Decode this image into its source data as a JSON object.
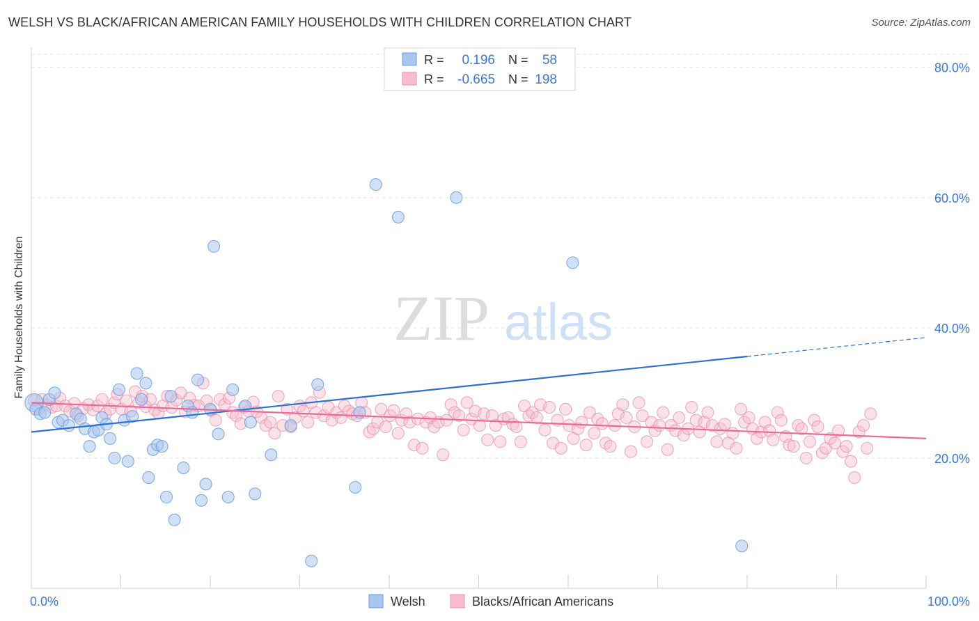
{
  "title": "WELSH VS BLACK/AFRICAN AMERICAN FAMILY HOUSEHOLDS WITH CHILDREN CORRELATION CHART",
  "source": "Source: ZipAtlas.com",
  "watermark": {
    "zip": "ZIP",
    "atlas": "atlas"
  },
  "legend_top": {
    "rows": [
      {
        "r_label": "R =",
        "r_value": "0.196",
        "n_label": "N =",
        "n_value": "58",
        "color": "#6a9be0"
      },
      {
        "r_label": "R =",
        "r_value": "-0.665",
        "n_label": "N =",
        "n_value": "198",
        "color": "#f08aaa"
      }
    ]
  },
  "legend_bottom": [
    "Welsh",
    "Blacks/African Americans"
  ],
  "colors": {
    "blue_fill": "#a9c6f0",
    "blue_stroke": "#6a9be0",
    "blue_line": "#2e6fd1",
    "pink_fill": "#f7bccd",
    "pink_stroke": "#ea8fab",
    "pink_line": "#e86b94",
    "tick_text": "#3a78d4",
    "grid": "#e3e3e3"
  },
  "chart_data": {
    "type": "scatter",
    "title": "WELSH VS BLACK/AFRICAN AMERICAN FAMILY HOUSEHOLDS WITH CHILDREN CORRELATION CHART",
    "xlabel": "",
    "ylabel": "Family Households with Children",
    "xlim": [
      0,
      100
    ],
    "ylim": [
      0,
      82
    ],
    "x_tick_labels": [
      "0.0%",
      "100.0%"
    ],
    "y_tick_labels": [
      "20.0%",
      "40.0%",
      "60.0%",
      "80.0%"
    ],
    "y_ticks": [
      20,
      40,
      60,
      80
    ],
    "grid": true,
    "legend_placement": "top-center",
    "series": [
      {
        "name": "Welsh",
        "points": [
          [
            0.3,
            28.5
          ],
          [
            0.5,
            27.5
          ],
          [
            1.0,
            26.8
          ],
          [
            1.5,
            27.0
          ],
          [
            2.0,
            29.0
          ],
          [
            2.6,
            30.0
          ],
          [
            3.0,
            25.5
          ],
          [
            3.5,
            25.8
          ],
          [
            4.2,
            25.0
          ],
          [
            5.0,
            26.8
          ],
          [
            5.5,
            26.0
          ],
          [
            6.0,
            24.5
          ],
          [
            6.5,
            21.8
          ],
          [
            7.0,
            24.0
          ],
          [
            7.5,
            24.3
          ],
          [
            7.9,
            26.2
          ],
          [
            8.4,
            25.2
          ],
          [
            8.8,
            23.0
          ],
          [
            9.3,
            20.0
          ],
          [
            9.8,
            30.5
          ],
          [
            10.4,
            25.8
          ],
          [
            10.8,
            19.5
          ],
          [
            11.3,
            26.4
          ],
          [
            11.8,
            33.0
          ],
          [
            12.3,
            29.0
          ],
          [
            12.8,
            31.5
          ],
          [
            13.1,
            17.0
          ],
          [
            13.6,
            21.3
          ],
          [
            14.1,
            22.0
          ],
          [
            14.6,
            21.8
          ],
          [
            15.1,
            14.0
          ],
          [
            15.6,
            29.5
          ],
          [
            16.0,
            10.5
          ],
          [
            17.0,
            18.5
          ],
          [
            17.5,
            28.0
          ],
          [
            18.0,
            27.0
          ],
          [
            18.6,
            32.0
          ],
          [
            19.0,
            13.5
          ],
          [
            19.5,
            16.0
          ],
          [
            20.0,
            27.5
          ],
          [
            20.4,
            52.5
          ],
          [
            20.9,
            23.7
          ],
          [
            22.0,
            14.0
          ],
          [
            22.5,
            30.5
          ],
          [
            23.9,
            28.0
          ],
          [
            24.5,
            25.5
          ],
          [
            25.0,
            14.5
          ],
          [
            26.8,
            20.5
          ],
          [
            29.0,
            25.0
          ],
          [
            31.3,
            4.2
          ],
          [
            32.0,
            31.3
          ],
          [
            36.2,
            15.5
          ],
          [
            36.7,
            27.0
          ],
          [
            38.5,
            62.0
          ],
          [
            41.0,
            57.0
          ],
          [
            47.5,
            60.0
          ],
          [
            60.5,
            50.0
          ],
          [
            79.4,
            6.5
          ]
        ],
        "trend": {
          "x": [
            0,
            80
          ],
          "y": [
            24.0,
            35.6
          ],
          "dashed_extension_to": [
            100,
            38.5
          ]
        }
      },
      {
        "name": "Blacks/African Americans",
        "points": [
          [
            0.3,
            28.8
          ],
          [
            0.8,
            27.5
          ],
          [
            1.2,
            29.0
          ],
          [
            1.8,
            28.2
          ],
          [
            2.3,
            27.8
          ],
          [
            2.8,
            28.0
          ],
          [
            3.2,
            29.2
          ],
          [
            3.8,
            28.0
          ],
          [
            4.3,
            27.2
          ],
          [
            4.8,
            28.4
          ],
          [
            5.2,
            26.5
          ],
          [
            5.8,
            27.6
          ],
          [
            6.4,
            28.2
          ],
          [
            6.9,
            27.4
          ],
          [
            7.4,
            28.0
          ],
          [
            7.9,
            29.0
          ],
          [
            8.3,
            26.8
          ],
          [
            8.8,
            27.5
          ],
          [
            9.3,
            28.5
          ],
          [
            9.6,
            29.8
          ],
          [
            10.1,
            27.5
          ],
          [
            10.6,
            28.8
          ],
          [
            11.1,
            27.2
          ],
          [
            11.6,
            30.2
          ],
          [
            12.0,
            28.5
          ],
          [
            12.4,
            29.5
          ],
          [
            12.8,
            27.9
          ],
          [
            13.3,
            29.0
          ],
          [
            13.8,
            27.4
          ],
          [
            14.2,
            26.9
          ],
          [
            14.7,
            28.0
          ],
          [
            15.2,
            29.5
          ],
          [
            15.7,
            27.8
          ],
          [
            16.2,
            28.9
          ],
          [
            16.7,
            30.0
          ],
          [
            17.2,
            27.1
          ],
          [
            17.7,
            29.2
          ],
          [
            18.2,
            28.1
          ],
          [
            18.7,
            28.0
          ],
          [
            19.2,
            31.5
          ],
          [
            19.6,
            28.8
          ],
          [
            20.1,
            27.3
          ],
          [
            20.6,
            25.8
          ],
          [
            21.1,
            29.0
          ],
          [
            21.6,
            28.2
          ],
          [
            22.1,
            29.2
          ],
          [
            22.5,
            27.0
          ],
          [
            22.9,
            26.5
          ],
          [
            23.4,
            25.3
          ],
          [
            23.8,
            27.8
          ],
          [
            24.3,
            27.2
          ],
          [
            24.8,
            28.6
          ],
          [
            25.2,
            27.1
          ],
          [
            25.7,
            26.2
          ],
          [
            26.2,
            25.0
          ],
          [
            26.7,
            25.5
          ],
          [
            27.2,
            23.8
          ],
          [
            27.6,
            29.5
          ],
          [
            28.1,
            25.0
          ],
          [
            28.6,
            27.5
          ],
          [
            29.0,
            24.8
          ],
          [
            29.5,
            26.2
          ],
          [
            30.0,
            28.0
          ],
          [
            30.4,
            27.2
          ],
          [
            30.9,
            25.5
          ],
          [
            31.3,
            28.5
          ],
          [
            31.8,
            27.0
          ],
          [
            32.2,
            30.1
          ],
          [
            32.7,
            26.5
          ],
          [
            33.2,
            27.8
          ],
          [
            33.6,
            25.8
          ],
          [
            34.1,
            27.0
          ],
          [
            34.6,
            26.2
          ],
          [
            35.0,
            28.0
          ],
          [
            35.5,
            27.2
          ],
          [
            35.9,
            26.8
          ],
          [
            36.4,
            26.5
          ],
          [
            36.9,
            28.5
          ],
          [
            37.3,
            27.0
          ],
          [
            37.8,
            24.0
          ],
          [
            38.2,
            24.5
          ],
          [
            38.7,
            25.5
          ],
          [
            39.1,
            27.5
          ],
          [
            39.6,
            24.8
          ],
          [
            40.1,
            26.5
          ],
          [
            40.5,
            27.3
          ],
          [
            41.0,
            23.8
          ],
          [
            41.4,
            25.8
          ],
          [
            41.9,
            26.8
          ],
          [
            42.3,
            25.5
          ],
          [
            42.8,
            22.0
          ],
          [
            43.2,
            26.0
          ],
          [
            43.7,
            21.5
          ],
          [
            44.1,
            25.5
          ],
          [
            44.6,
            26.2
          ],
          [
            45.0,
            24.8
          ],
          [
            45.5,
            25.5
          ],
          [
            46.0,
            20.5
          ],
          [
            46.4,
            25.8
          ],
          [
            46.9,
            28.2
          ],
          [
            47.3,
            27.0
          ],
          [
            47.8,
            26.5
          ],
          [
            48.3,
            24.3
          ],
          [
            48.7,
            28.5
          ],
          [
            49.2,
            26.0
          ],
          [
            49.6,
            27.2
          ],
          [
            50.1,
            25.0
          ],
          [
            50.6,
            26.8
          ],
          [
            51.0,
            22.8
          ],
          [
            51.5,
            26.5
          ],
          [
            51.9,
            25.0
          ],
          [
            52.4,
            22.5
          ],
          [
            52.8,
            26.0
          ],
          [
            53.3,
            26.2
          ],
          [
            53.8,
            25.2
          ],
          [
            54.2,
            24.8
          ],
          [
            54.7,
            22.5
          ],
          [
            55.1,
            28.0
          ],
          [
            55.6,
            26.5
          ],
          [
            56.0,
            27.0
          ],
          [
            56.5,
            26.2
          ],
          [
            56.9,
            28.2
          ],
          [
            57.4,
            24.3
          ],
          [
            57.9,
            27.8
          ],
          [
            58.3,
            22.3
          ],
          [
            58.8,
            25.8
          ],
          [
            59.2,
            21.5
          ],
          [
            59.7,
            27.5
          ],
          [
            60.1,
            25.0
          ],
          [
            60.6,
            23.0
          ],
          [
            61.1,
            24.5
          ],
          [
            61.5,
            25.5
          ],
          [
            62.0,
            22.0
          ],
          [
            62.4,
            27.0
          ],
          [
            62.9,
            23.8
          ],
          [
            63.3,
            26.0
          ],
          [
            63.8,
            25.3
          ],
          [
            64.2,
            22.3
          ],
          [
            64.7,
            21.8
          ],
          [
            65.2,
            25.0
          ],
          [
            65.6,
            26.8
          ],
          [
            66.1,
            28.2
          ],
          [
            66.5,
            26.2
          ],
          [
            67.0,
            21.0
          ],
          [
            67.4,
            24.8
          ],
          [
            67.9,
            28.5
          ],
          [
            68.3,
            26.5
          ],
          [
            68.8,
            22.5
          ],
          [
            69.3,
            25.5
          ],
          [
            69.7,
            24.2
          ],
          [
            70.2,
            25.0
          ],
          [
            70.6,
            27.0
          ],
          [
            71.1,
            21.3
          ],
          [
            71.5,
            25.0
          ],
          [
            72.0,
            24.2
          ],
          [
            72.4,
            26.2
          ],
          [
            72.9,
            23.5
          ],
          [
            73.4,
            24.5
          ],
          [
            73.8,
            27.8
          ],
          [
            74.3,
            25.8
          ],
          [
            74.7,
            24.0
          ],
          [
            75.2,
            25.5
          ],
          [
            75.6,
            27.0
          ],
          [
            76.1,
            25.0
          ],
          [
            76.6,
            22.5
          ],
          [
            77.0,
            24.5
          ],
          [
            77.5,
            25.2
          ],
          [
            77.9,
            22.3
          ],
          [
            78.4,
            23.8
          ],
          [
            78.8,
            21.5
          ],
          [
            79.3,
            27.5
          ],
          [
            79.7,
            25.5
          ],
          [
            80.2,
            26.2
          ],
          [
            80.6,
            24.5
          ],
          [
            81.1,
            23.0
          ],
          [
            81.6,
            24.0
          ],
          [
            82.0,
            25.5
          ],
          [
            82.5,
            24.2
          ],
          [
            82.9,
            22.8
          ],
          [
            83.4,
            27.0
          ],
          [
            83.8,
            25.8
          ],
          [
            84.3,
            23.3
          ],
          [
            84.7,
            22.0
          ],
          [
            85.2,
            21.8
          ],
          [
            85.7,
            25.0
          ],
          [
            86.1,
            24.5
          ],
          [
            86.6,
            20.0
          ],
          [
            87.0,
            22.5
          ],
          [
            87.5,
            25.8
          ],
          [
            87.9,
            24.8
          ],
          [
            88.4,
            20.8
          ],
          [
            88.8,
            21.5
          ],
          [
            89.3,
            23.0
          ],
          [
            89.8,
            22.3
          ],
          [
            90.2,
            24.2
          ],
          [
            90.7,
            21.0
          ],
          [
            91.1,
            21.8
          ],
          [
            91.6,
            19.5
          ],
          [
            92.0,
            17.0
          ],
          [
            92.5,
            24.0
          ],
          [
            93.0,
            25.0
          ],
          [
            93.4,
            21.5
          ],
          [
            93.8,
            26.8
          ]
        ],
        "trend": {
          "x": [
            0,
            100
          ],
          "y": [
            28.5,
            23.0
          ]
        }
      }
    ]
  }
}
